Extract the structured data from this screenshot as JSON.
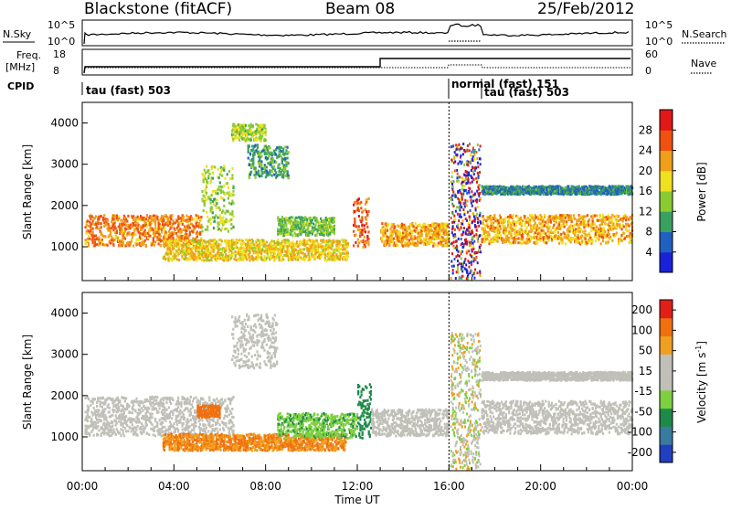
{
  "header": {
    "title": "Blackstone (fitACF)",
    "beam": "Beam 08",
    "date": "25/Feb/2012"
  },
  "panels": {
    "nsky": {
      "label": "N.Sky",
      "left_ticks": [
        "10^5",
        "10^0"
      ],
      "right_ticks": [
        "10^5",
        "10^0"
      ],
      "right_label": "N.Search"
    },
    "freq": {
      "label_line1": "Freq.",
      "label_line2": "[MHz]",
      "left_ticks": [
        "18",
        "8"
      ],
      "right_ticks": [
        "60",
        "0"
      ],
      "right_label": "Nave"
    },
    "cpid": {
      "label": "CPID",
      "segments": [
        "tau (fast) 503",
        "normal (fast) 151",
        "tau (fast) 503"
      ]
    }
  },
  "chart_data": [
    {
      "type": "heatmap",
      "name": "power",
      "ylabel": "Slant Range [km]",
      "xlabel": "",
      "yticks": [
        "1000",
        "2000",
        "3000",
        "4000"
      ],
      "ylim": [
        180,
        4500
      ],
      "xlim": [
        0,
        24
      ],
      "colorbar_label": "Power [dB]",
      "colorbar_ticks": [
        "4",
        "8",
        "12",
        "16",
        "20",
        "24",
        "28"
      ],
      "colorscale": [
        "#1a22d8",
        "#2060c0",
        "#3aa060",
        "#8acb30",
        "#f0e020",
        "#f0a018",
        "#f05010",
        "#e01818"
      ],
      "range_km": [
        0,
        30
      ],
      "bands": [
        {
          "t0": 0.1,
          "t1": 5.2,
          "r_low": 1050,
          "r_high": 1800,
          "value": 22
        },
        {
          "t0": 5.2,
          "t1": 6.6,
          "r_low": 1400,
          "r_high": 3000,
          "value": 14
        },
        {
          "t0": 6.5,
          "t1": 8.0,
          "r_low": 3600,
          "r_high": 4000,
          "value": 14
        },
        {
          "t0": 7.2,
          "t1": 9.0,
          "r_low": 2700,
          "r_high": 3500,
          "value": 10
        },
        {
          "t0": 3.5,
          "t1": 11.6,
          "r_low": 700,
          "r_high": 1200,
          "value": 18
        },
        {
          "t0": 8.5,
          "t1": 11.0,
          "r_low": 1300,
          "r_high": 1750,
          "value": 12
        },
        {
          "t0": 11.8,
          "t1": 12.5,
          "r_low": 1000,
          "r_high": 2200,
          "value": 24
        },
        {
          "t0": 13.0,
          "t1": 16.0,
          "r_low": 1050,
          "r_high": 1600,
          "value": 20
        },
        {
          "t0": 17.4,
          "t1": 24.0,
          "r_low": 1100,
          "r_high": 1800,
          "value": 20
        },
        {
          "t0": 17.4,
          "t1": 24.0,
          "r_low": 2300,
          "r_high": 2500,
          "value": 8
        }
      ]
    },
    {
      "type": "heatmap",
      "name": "velocity",
      "ylabel": "Slant Range [km]",
      "xlabel": "Time UT",
      "yticks": [
        "1000",
        "2000",
        "3000",
        "4000"
      ],
      "xticks": [
        "00:00",
        "04:00",
        "08:00",
        "12:00",
        "16:00",
        "20:00",
        "00:00"
      ],
      "ylim": [
        180,
        4500
      ],
      "xlim": [
        0,
        24
      ],
      "colorbar_label": "Velocity [m s^-1]",
      "colorbar_ticks": [
        "200",
        "100",
        "50",
        "15",
        "-15",
        "-50",
        "-100",
        "-200"
      ],
      "colorscale": [
        "#2040c0",
        "#3a7aa0",
        "#1e8a4a",
        "#7ed040",
        "#c0c0b8",
        "#c0c0b8",
        "#f0a020",
        "#f07010",
        "#e02018"
      ],
      "bands": [
        {
          "t0": 0.1,
          "t1": 6.6,
          "r_low": 1050,
          "r_high": 2000,
          "value": 0
        },
        {
          "t0": 6.5,
          "t1": 8.5,
          "r_low": 2700,
          "r_high": 4000,
          "value": 0
        },
        {
          "t0": 3.5,
          "t1": 11.5,
          "r_low": 700,
          "r_high": 1100,
          "value": -50
        },
        {
          "t0": 5.0,
          "t1": 6.0,
          "r_low": 1500,
          "r_high": 1800,
          "value": -80
        },
        {
          "t0": 8.5,
          "t1": 12.0,
          "r_low": 1000,
          "r_high": 1600,
          "value": 30
        },
        {
          "t0": 12.0,
          "t1": 12.6,
          "r_low": 1000,
          "r_high": 2300,
          "value": 50
        },
        {
          "t0": 12.6,
          "t1": 16.0,
          "r_low": 1050,
          "r_high": 1700,
          "value": 0
        },
        {
          "t0": 17.4,
          "t1": 24.0,
          "r_low": 1100,
          "r_high": 1900,
          "value": 0
        },
        {
          "t0": 17.4,
          "t1": 24.0,
          "r_low": 2400,
          "r_high": 2600,
          "value": 0
        }
      ]
    }
  ]
}
